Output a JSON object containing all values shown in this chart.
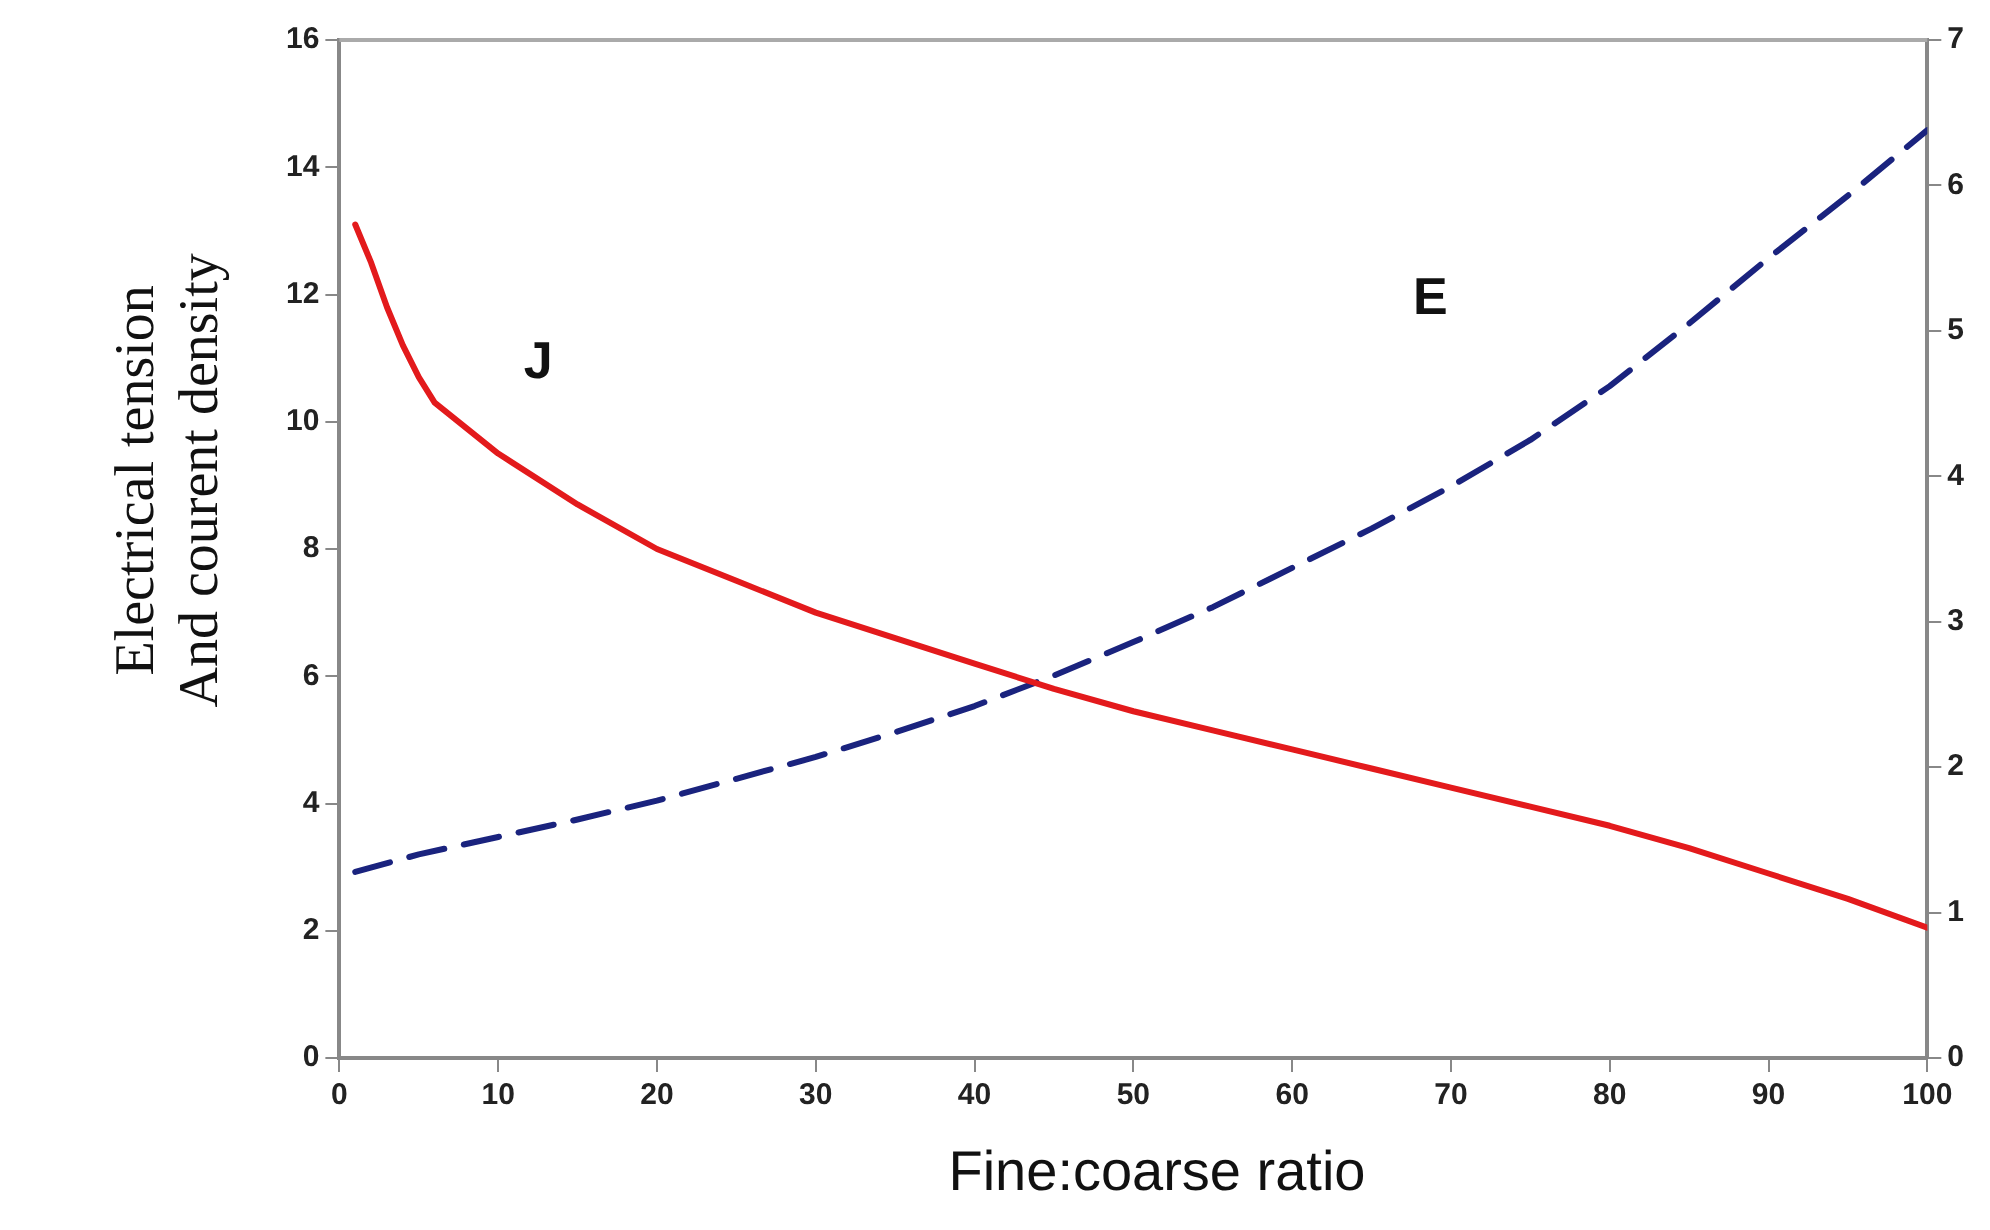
{
  "chart_data": {
    "type": "line",
    "xlabel": "Fine:coarse ratio",
    "ylabel": "Electrical tension\nAnd courent density",
    "xlim": [
      0,
      100
    ],
    "xticks": [
      0,
      10,
      20,
      30,
      40,
      50,
      60,
      70,
      80,
      90,
      100
    ],
    "ylim": [
      0,
      16
    ],
    "yticks": [
      0,
      2,
      4,
      6,
      8,
      10,
      12,
      14,
      16
    ],
    "y2lim": [
      0,
      7
    ],
    "y2ticks": [
      0,
      1,
      2,
      3,
      4,
      5,
      6,
      7
    ],
    "grid": false,
    "legend": false,
    "marker": "none",
    "series": [
      {
        "name": "J",
        "color": "#e31a1c",
        "line_style": "solid",
        "x": [
          1,
          2,
          3,
          4,
          5,
          6,
          8,
          10,
          15,
          20,
          25,
          30,
          35,
          40,
          45,
          50,
          55,
          60,
          65,
          70,
          75,
          80,
          85,
          90,
          95,
          100
        ],
        "values": [
          13.1,
          12.5,
          11.8,
          11.2,
          10.7,
          10.3,
          9.9,
          9.5,
          8.7,
          8.0,
          7.5,
          7.0,
          6.6,
          6.2,
          5.8,
          5.45,
          5.15,
          4.85,
          4.55,
          4.25,
          3.95,
          3.65,
          3.3,
          2.9,
          2.5,
          2.05
        ]
      },
      {
        "name": "E",
        "color": "#1a237e",
        "line_style": "dashed",
        "axis": "y2",
        "x": [
          1,
          5,
          10,
          15,
          20,
          25,
          30,
          35,
          40,
          45,
          50,
          55,
          60,
          65,
          70,
          75,
          80,
          85,
          90,
          95,
          100
        ],
        "values": [
          1.28,
          1.4,
          1.52,
          1.64,
          1.77,
          1.92,
          2.07,
          2.24,
          2.42,
          2.63,
          2.86,
          3.1,
          3.37,
          3.64,
          3.93,
          4.25,
          4.62,
          5.05,
          5.5,
          5.93,
          6.38
        ]
      }
    ]
  }
}
